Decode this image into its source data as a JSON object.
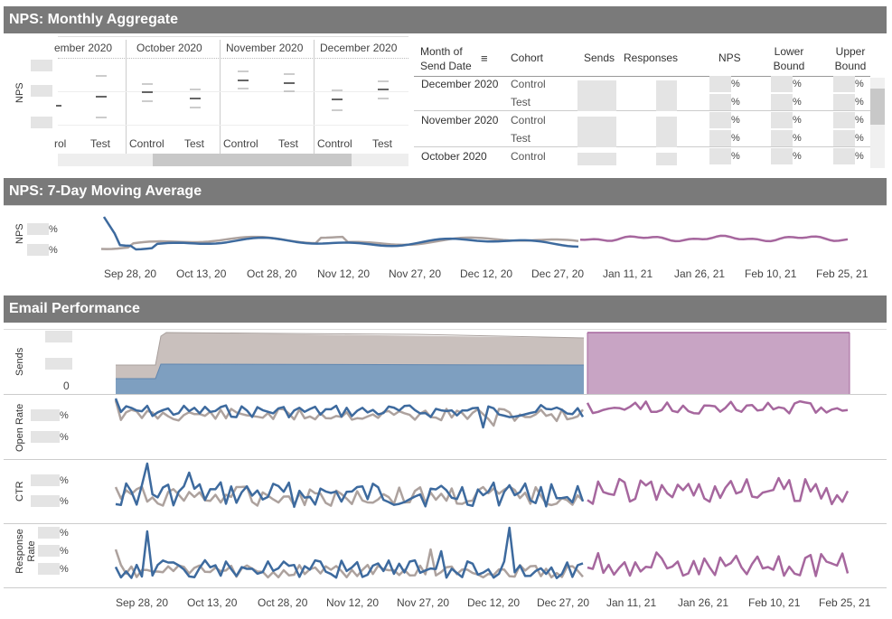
{
  "colors": {
    "header_bg": "#7a7a7a",
    "control": "#3d6a9e",
    "test": "#ada29e",
    "forecast": "#a6679e",
    "placeholder": "#e4e4e4"
  },
  "sections": {
    "nps_monthly": "NPS: Monthly Aggregate",
    "nps_ma": "NPS: 7-Day Moving Average",
    "email": "Email Performance"
  },
  "monthly": {
    "ylabel": "NPS",
    "months": [
      "ember 2020",
      "October 2020",
      "November 2020",
      "December 2020"
    ],
    "cohorts": [
      "Control",
      "Test"
    ],
    "first_control_partial": "rol"
  },
  "table": {
    "headers": {
      "month": "Month of Send Date",
      "cohort": "Cohort",
      "sends": "Sends",
      "responses": "Responses",
      "nps": "NPS",
      "lower": "Lower Bound",
      "upper": "Upper Bound"
    },
    "rows": [
      {
        "month": "December 2020",
        "cohort": "Control"
      },
      {
        "month": "",
        "cohort": "Test"
      },
      {
        "month": "November 2020",
        "cohort": "Control"
      },
      {
        "month": "",
        "cohort": "Test"
      },
      {
        "month": "October 2020",
        "cohort": "Control"
      }
    ],
    "pct": "%"
  },
  "ma": {
    "ylabel": "NPS",
    "pct": "%"
  },
  "x_dates": [
    "Sep 28, 20",
    "Oct 13, 20",
    "Oct 28, 20",
    "Nov 12, 20",
    "Nov 27, 20",
    "Dec 12, 20",
    "Dec 27, 20",
    "Jan 11, 21",
    "Jan 26, 21",
    "Feb 10, 21",
    "Feb 25, 21"
  ],
  "email": {
    "sends_label": "Sends",
    "sends_zero": "0",
    "open_label": "Open Rate",
    "ctr_label": "CTR",
    "resp_label": "Response Rate",
    "pct": "%"
  }
}
